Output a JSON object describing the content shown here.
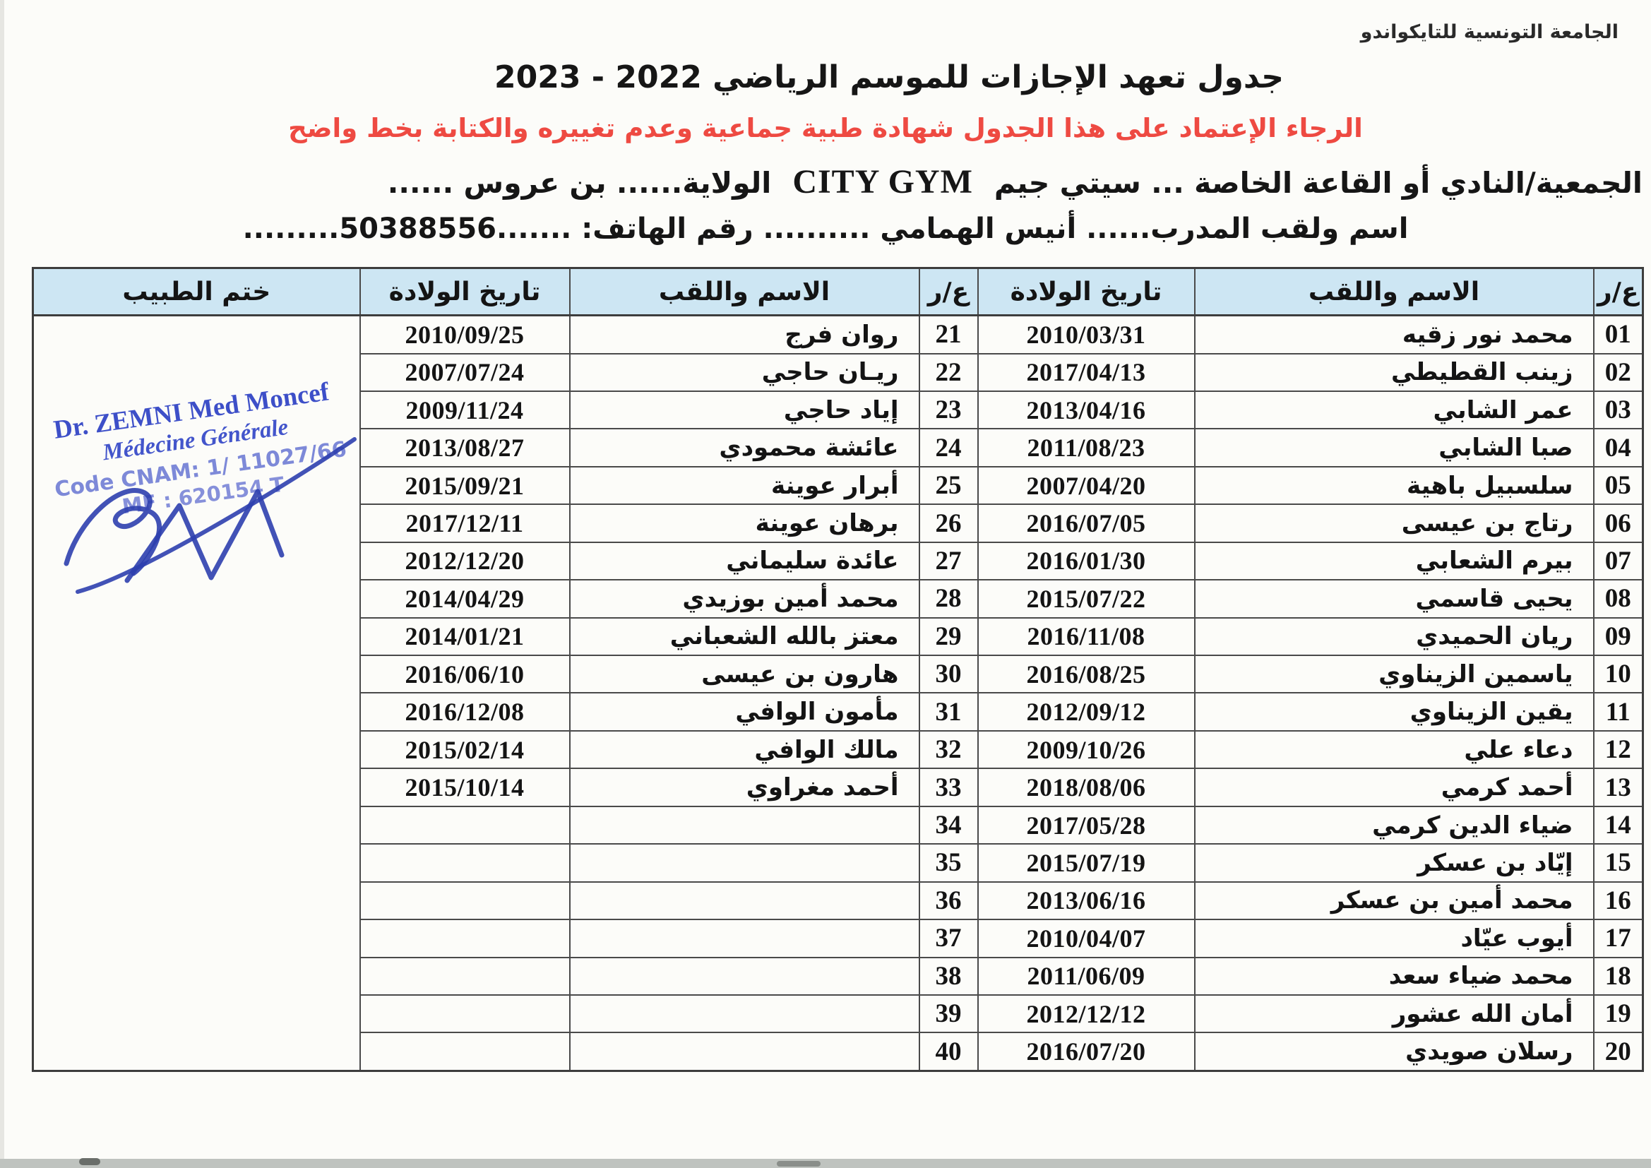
{
  "page": {
    "federation": "الجامعة التونسية للتايكواندو",
    "title": "جدول تعهد الإجازات للموسم الرياضي 2022 - 2023",
    "notice_red": "الرجاء الإعتماد على هذا الجدول شهادة طبية جماعية وعدم تغييره والكتابة بخط واضح",
    "club_prefix": "الجمعية/النادي أو القاعة الخاصة ... سيتي جيم",
    "club_latin": "CITY GYM",
    "club_suffix": "الولاية...... بن عروس ......",
    "trainer_line": "اسم ولقب المدرب...... أنيس الهمامي .......... رقم الهاتف: .......50388556........."
  },
  "table": {
    "headers": {
      "no": "ع/ر",
      "name": "الاسم واللقب",
      "birthdate": "تاريخ الولادة",
      "stamp": "ختم الطبيب"
    },
    "rows": [
      {
        "no1": "01",
        "name1": "محمد نور زقيه",
        "date1": "2010/03/31",
        "no2": "21",
        "name2": "روان فرج",
        "date2": "2010/09/25"
      },
      {
        "no1": "02",
        "name1": "زينب القطيطي",
        "date1": "2017/04/13",
        "no2": "22",
        "name2": "ريـان حاجي",
        "date2": "2007/07/24"
      },
      {
        "no1": "03",
        "name1": "عمر الشابي",
        "date1": "2013/04/16",
        "no2": "23",
        "name2": "إياد حاجي",
        "date2": "2009/11/24"
      },
      {
        "no1": "04",
        "name1": "صبا الشابي",
        "date1": "2011/08/23",
        "no2": "24",
        "name2": "عائشة محمودي",
        "date2": "2013/08/27"
      },
      {
        "no1": "05",
        "name1": "سلسبيل باهية",
        "date1": "2007/04/20",
        "no2": "25",
        "name2": "أبرار عوينة",
        "date2": "2015/09/21"
      },
      {
        "no1": "06",
        "name1": "رتاج بن عيسى",
        "date1": "2016/07/05",
        "no2": "26",
        "name2": "برهان عوينة",
        "date2": "2017/12/11"
      },
      {
        "no1": "07",
        "name1": "بيرم الشعابي",
        "date1": "2016/01/30",
        "no2": "27",
        "name2": "عائدة سليماني",
        "date2": "2012/12/20"
      },
      {
        "no1": "08",
        "name1": "يحيى قاسمي",
        "date1": "2015/07/22",
        "no2": "28",
        "name2": "محمد أمين بوزيدي",
        "date2": "2014/04/29"
      },
      {
        "no1": "09",
        "name1": "ريان الحميدي",
        "date1": "2016/11/08",
        "no2": "29",
        "name2": "معتز بالله الشعباني",
        "date2": "2014/01/21"
      },
      {
        "no1": "10",
        "name1": "ياسمين الزيناوي",
        "date1": "2016/08/25",
        "no2": "30",
        "name2": "هارون بن عيسى",
        "date2": "2016/06/10"
      },
      {
        "no1": "11",
        "name1": "يقين الزيناوي",
        "date1": "2012/09/12",
        "no2": "31",
        "name2": "مأمون الوافي",
        "date2": "2016/12/08"
      },
      {
        "no1": "12",
        "name1": "دعاء علي",
        "date1": "2009/10/26",
        "no2": "32",
        "name2": "مالك الوافي",
        "date2": "2015/02/14"
      },
      {
        "no1": "13",
        "name1": "أحمد كرمي",
        "date1": "2018/08/06",
        "no2": "33",
        "name2": "أحمد مغراوي",
        "date2": "2015/10/14"
      },
      {
        "no1": "14",
        "name1": "ضياء الدين كرمي",
        "date1": "2017/05/28",
        "no2": "34",
        "name2": "",
        "date2": ""
      },
      {
        "no1": "15",
        "name1": "إيّاد بن عسكر",
        "date1": "2015/07/19",
        "no2": "35",
        "name2": "",
        "date2": ""
      },
      {
        "no1": "16",
        "name1": "محمد أمين بن عسكر",
        "date1": "2013/06/16",
        "no2": "36",
        "name2": "",
        "date2": ""
      },
      {
        "no1": "17",
        "name1": "أيوب عيّاد",
        "date1": "2010/04/07",
        "no2": "37",
        "name2": "",
        "date2": ""
      },
      {
        "no1": "18",
        "name1": "محمد ضياء سعد",
        "date1": "2011/06/09",
        "no2": "38",
        "name2": "",
        "date2": ""
      },
      {
        "no1": "19",
        "name1": "أمان الله عشور",
        "date1": "2012/12/12",
        "no2": "39",
        "name2": "",
        "date2": ""
      },
      {
        "no1": "20",
        "name1": "رسلان صويدي",
        "date1": "2016/07/20",
        "no2": "40",
        "name2": "",
        "date2": ""
      }
    ]
  },
  "stamp": {
    "doctor_name": "Dr. ZEMNI Med Moncef",
    "specialty": "Médecine Générale",
    "cnam_code": "Code CNAM: 1/ 11027/66",
    "mf_code": "MF : 620154 T"
  },
  "colors": {
    "header_bg": "#cde6f3",
    "notice_red": "#ee4a42",
    "stamp_blue": "#3d4fc8",
    "signature_blue": "#2e3fae",
    "paper": "#fcfcf9"
  }
}
